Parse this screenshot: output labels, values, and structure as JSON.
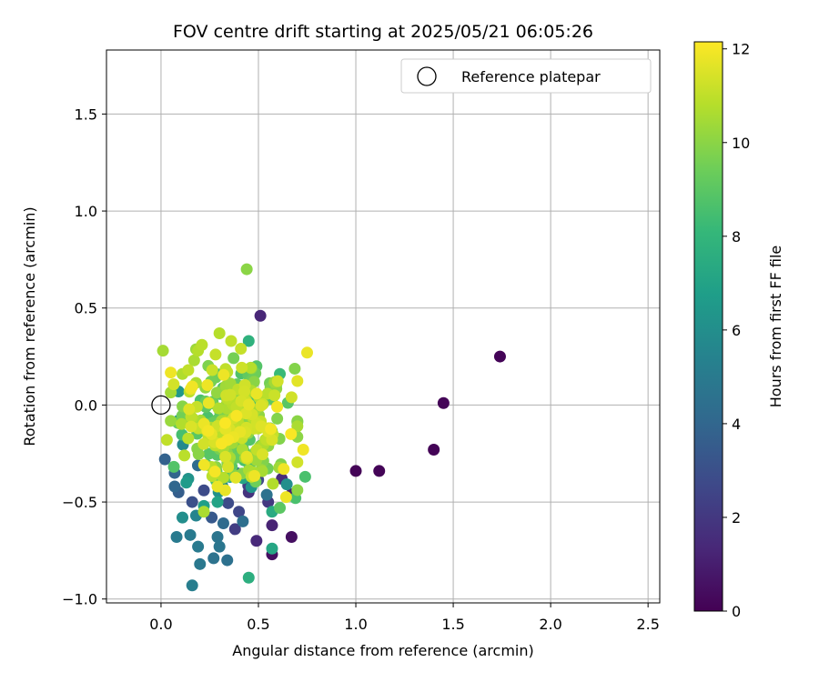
{
  "chart_data": {
    "type": "scatter",
    "title": "FOV centre drift starting at 2025/05/21 06:05:26",
    "xlabel": "Angular distance from reference (arcmin)",
    "ylabel": "Rotation from reference (arcmin)",
    "xlim": [
      -0.28,
      2.56
    ],
    "ylim": [
      -1.02,
      1.83
    ],
    "x_ticks": [
      0.0,
      0.5,
      1.0,
      1.5,
      2.0,
      2.5
    ],
    "x_tick_labels": [
      "0.0",
      "0.5",
      "1.0",
      "1.5",
      "2.0",
      "2.5"
    ],
    "y_ticks": [
      -1.0,
      -0.5,
      0.0,
      0.5,
      1.0,
      1.5
    ],
    "y_tick_labels": [
      "−1.0",
      "−0.5",
      "0.0",
      "0.5",
      "1.0",
      "1.5"
    ],
    "grid": true,
    "legend": {
      "location": "upper right",
      "entries": [
        "Reference platepar"
      ]
    },
    "reference_point": {
      "x": 0.0,
      "y": 0.0,
      "label": "Reference platepar"
    },
    "colorbar": {
      "label": "Hours from first FF file",
      "colormap": "viridis",
      "range": [
        0,
        12.15
      ],
      "ticks": [
        0,
        2,
        4,
        6,
        8,
        10,
        12
      ],
      "tick_labels": [
        "0",
        "2",
        "4",
        "6",
        "8",
        "10",
        "12"
      ]
    },
    "colormap_stops": [
      "#440154",
      "#482878",
      "#3e4989",
      "#31688e",
      "#26828e",
      "#1f9e89",
      "#35b779",
      "#6ece58",
      "#b5de2b",
      "#fde725"
    ],
    "points": [
      {
        "x": 1.74,
        "y": 0.25,
        "c": 0.1
      },
      {
        "x": 1.45,
        "y": 0.01,
        "c": 0.1
      },
      {
        "x": 1.4,
        "y": -0.23,
        "c": 0.1
      },
      {
        "x": 1.0,
        "y": -0.34,
        "c": 0.1
      },
      {
        "x": 1.12,
        "y": -0.34,
        "c": 0.1
      },
      {
        "x": 0.51,
        "y": 0.46,
        "c": 1.3
      },
      {
        "x": 0.67,
        "y": -0.68,
        "c": 0.5
      },
      {
        "x": 0.57,
        "y": -0.77,
        "c": 0.5
      },
      {
        "x": 0.57,
        "y": -0.62,
        "c": 1.2
      },
      {
        "x": 0.49,
        "y": -0.7,
        "c": 1.4
      },
      {
        "x": 0.67,
        "y": -0.46,
        "c": 1.0
      },
      {
        "x": 0.45,
        "y": -0.45,
        "c": 1.8
      },
      {
        "x": 0.62,
        "y": -0.38,
        "c": 1.5
      },
      {
        "x": 0.55,
        "y": -0.5,
        "c": 2.0
      },
      {
        "x": 0.38,
        "y": -0.64,
        "c": 2.2
      },
      {
        "x": 0.4,
        "y": -0.55,
        "c": 2.6
      },
      {
        "x": 0.22,
        "y": -0.44,
        "c": 2.8
      },
      {
        "x": 0.16,
        "y": -0.5,
        "c": 3.0
      },
      {
        "x": 0.32,
        "y": -0.43,
        "c": 3.2
      },
      {
        "x": 0.26,
        "y": -0.58,
        "c": 3.4
      },
      {
        "x": 0.09,
        "y": -0.45,
        "c": 3.6
      },
      {
        "x": 0.07,
        "y": -0.42,
        "c": 4.0
      },
      {
        "x": 0.02,
        "y": -0.28,
        "c": 3.8
      },
      {
        "x": 0.07,
        "y": -0.35,
        "c": 3.9
      },
      {
        "x": 0.32,
        "y": -0.61,
        "c": 4.2
      },
      {
        "x": 0.42,
        "y": -0.6,
        "c": 4.4
      },
      {
        "x": 0.34,
        "y": -0.8,
        "c": 4.5
      },
      {
        "x": 0.27,
        "y": -0.79,
        "c": 4.6
      },
      {
        "x": 0.29,
        "y": -0.68,
        "c": 4.7
      },
      {
        "x": 0.3,
        "y": -0.73,
        "c": 4.8
      },
      {
        "x": 0.2,
        "y": -0.82,
        "c": 4.9
      },
      {
        "x": 0.19,
        "y": -0.73,
        "c": 5.0
      },
      {
        "x": 0.15,
        "y": -0.67,
        "c": 5.0
      },
      {
        "x": 0.08,
        "y": -0.68,
        "c": 5.0
      },
      {
        "x": 0.16,
        "y": -0.93,
        "c": 5.2
      },
      {
        "x": 0.18,
        "y": -0.57,
        "c": 5.5
      },
      {
        "x": 0.11,
        "y": -0.58,
        "c": 6.0
      },
      {
        "x": 0.14,
        "y": -0.38,
        "c": 6.2
      },
      {
        "x": 0.09,
        "y": -0.08,
        "c": 6.4
      },
      {
        "x": 0.09,
        "y": 0.07,
        "c": 6.4
      },
      {
        "x": 0.13,
        "y": -0.4,
        "c": 6.6
      },
      {
        "x": 0.22,
        "y": -0.52,
        "c": 6.8
      },
      {
        "x": 0.29,
        "y": -0.5,
        "c": 7.0
      },
      {
        "x": 0.45,
        "y": 0.33,
        "c": 7.8
      },
      {
        "x": 0.45,
        "y": -0.89,
        "c": 7.6
      },
      {
        "x": 0.57,
        "y": -0.74,
        "c": 7.2
      },
      {
        "x": 0.57,
        "y": -0.55,
        "c": 7.4
      },
      {
        "x": 0.61,
        "y": 0.16,
        "c": 8.2
      },
      {
        "x": 0.56,
        "y": -0.12,
        "c": 8.4
      },
      {
        "x": 0.69,
        "y": -0.48,
        "c": 8.6
      },
      {
        "x": 0.74,
        "y": -0.37,
        "c": 8.6
      },
      {
        "x": 0.61,
        "y": -0.53,
        "c": 9.0
      },
      {
        "x": 0.42,
        "y": -0.22,
        "c": 8.8
      },
      {
        "x": 0.49,
        "y": 0.2,
        "c": 8.8
      },
      {
        "x": 0.44,
        "y": 0.7,
        "c": 10.0
      },
      {
        "x": 0.01,
        "y": 0.28,
        "c": 10.5
      },
      {
        "x": 0.3,
        "y": 0.37,
        "c": 10.8
      },
      {
        "x": 0.21,
        "y": 0.31,
        "c": 10.9
      },
      {
        "x": 0.19,
        "y": 0.28,
        "c": 10.8
      },
      {
        "x": 0.36,
        "y": 0.33,
        "c": 11.0
      },
      {
        "x": 0.17,
        "y": 0.23,
        "c": 10.6
      },
      {
        "x": 0.11,
        "y": 0.16,
        "c": 10.7
      },
      {
        "x": 0.14,
        "y": 0.18,
        "c": 11.0
      },
      {
        "x": 0.28,
        "y": 0.26,
        "c": 11.1
      },
      {
        "x": 0.34,
        "y": 0.17,
        "c": 11.0
      },
      {
        "x": 0.41,
        "y": 0.29,
        "c": 11.1
      },
      {
        "x": 0.75,
        "y": 0.27,
        "c": 11.8
      },
      {
        "x": 0.67,
        "y": 0.04,
        "c": 11.3
      },
      {
        "x": 0.03,
        "y": -0.18,
        "c": 11.0
      },
      {
        "x": 0.22,
        "y": -0.55,
        "c": 10.6
      },
      {
        "x": 0.73,
        "y": -0.23,
        "c": 11.9
      },
      {
        "x": 0.63,
        "y": -0.33,
        "c": 11.9
      },
      {
        "x": 0.12,
        "y": -0.26,
        "c": 10.9
      },
      {
        "x": 0.29,
        "y": -0.42,
        "c": 11.8
      }
    ],
    "cloud": {
      "x_range": [
        0.05,
        0.7
      ],
      "y_range": [
        -0.55,
        0.3
      ],
      "center": [
        0.38,
        -0.12
      ],
      "count": 300
    }
  }
}
